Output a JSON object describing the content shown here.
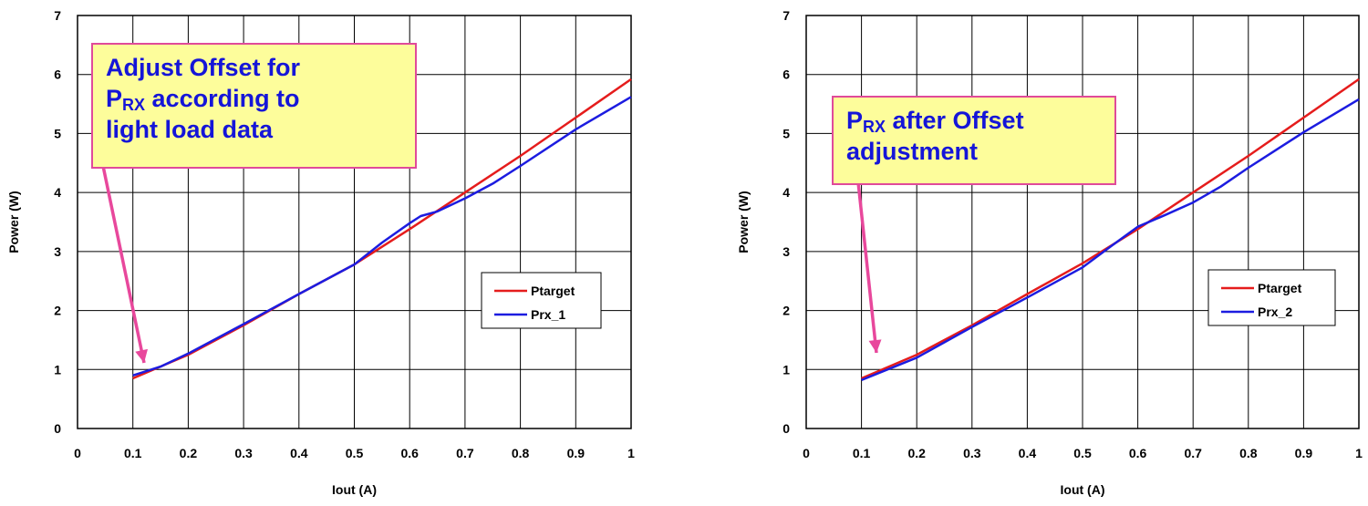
{
  "chart_data": [
    {
      "type": "line",
      "xlabel": "Iout (A)",
      "ylabel": "Power (W)",
      "xlim": [
        0,
        1
      ],
      "ylim": [
        0,
        7
      ],
      "xticks": [
        "0",
        "0.1",
        "0.2",
        "0.3",
        "0.4",
        "0.5",
        "0.6",
        "0.7",
        "0.8",
        "0.9",
        "1"
      ],
      "yticks": [
        "0",
        "1",
        "2",
        "3",
        "4",
        "5",
        "6",
        "7"
      ],
      "grid": true,
      "legend_position": "right",
      "annotation": {
        "line1": "Adjust Offset for",
        "p_main": "P",
        "p_sub": "RX",
        "line2_rest": " according to",
        "line3": "light load data"
      },
      "series": [
        {
          "name": "Ptarget",
          "color": "#e51c1c",
          "x": [
            0.1,
            0.2,
            0.3,
            0.4,
            0.5,
            0.6,
            0.7,
            0.8,
            0.9,
            1.0
          ],
          "y": [
            0.85,
            1.25,
            1.75,
            2.28,
            2.78,
            3.38,
            4.0,
            4.62,
            5.27,
            5.92
          ]
        },
        {
          "name": "Prx_1",
          "color": "#1c1ce0",
          "x": [
            0.1,
            0.15,
            0.2,
            0.3,
            0.4,
            0.5,
            0.55,
            0.6,
            0.62,
            0.65,
            0.7,
            0.75,
            0.8,
            0.9,
            1.0
          ],
          "y": [
            0.9,
            1.05,
            1.27,
            1.77,
            2.28,
            2.78,
            3.15,
            3.48,
            3.6,
            3.68,
            3.9,
            4.15,
            4.45,
            5.07,
            5.62
          ]
        }
      ]
    },
    {
      "type": "line",
      "xlabel": "Iout (A)",
      "ylabel": "Power (W)",
      "xlim": [
        0,
        1
      ],
      "ylim": [
        0,
        7
      ],
      "xticks": [
        "0",
        "0.1",
        "0.2",
        "0.3",
        "0.4",
        "0.5",
        "0.6",
        "0.7",
        "0.8",
        "0.9",
        "1"
      ],
      "yticks": [
        "0",
        "1",
        "2",
        "3",
        "4",
        "5",
        "6",
        "7"
      ],
      "grid": true,
      "legend_position": "right",
      "annotation": {
        "p_main": "P",
        "p_sub": "RX",
        "line1_rest": " after Offset",
        "line2": "adjustment"
      },
      "series": [
        {
          "name": "Ptarget",
          "color": "#e51c1c",
          "x": [
            0.1,
            0.2,
            0.3,
            0.4,
            0.5,
            0.6,
            0.7,
            0.8,
            0.9,
            1.0
          ],
          "y": [
            0.85,
            1.25,
            1.75,
            2.28,
            2.8,
            3.38,
            4.0,
            4.62,
            5.27,
            5.92
          ]
        },
        {
          "name": "Prx_2",
          "color": "#1c1ce0",
          "x": [
            0.1,
            0.2,
            0.3,
            0.4,
            0.5,
            0.55,
            0.6,
            0.65,
            0.7,
            0.75,
            0.8,
            0.9,
            1.0
          ],
          "y": [
            0.82,
            1.2,
            1.72,
            2.22,
            2.73,
            3.08,
            3.42,
            3.62,
            3.83,
            4.1,
            4.42,
            5.02,
            5.58
          ]
        }
      ]
    }
  ]
}
